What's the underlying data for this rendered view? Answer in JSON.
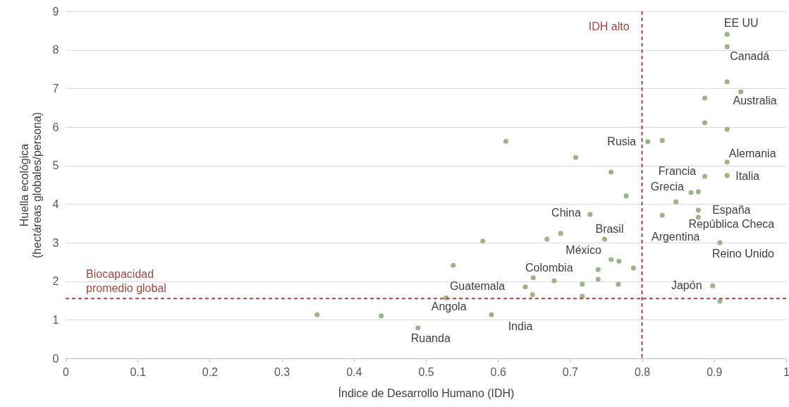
{
  "chart_data": {
    "type": "scatter",
    "xlabel": "Índice de Desarrollo Humano (IDH)",
    "ylabel": "Huella ecológica\n(hectáreas  globales/persona)",
    "x": [
      0.349,
      0.438,
      0.489,
      0.528,
      0.538,
      0.579,
      0.611,
      0.591,
      0.638,
      0.649,
      0.648,
      0.668,
      0.678,
      0.687,
      0.708,
      0.717,
      0.717,
      0.728,
      0.739,
      0.739,
      0.748,
      0.757,
      0.757,
      0.768,
      0.767,
      0.778,
      0.788,
      0.808,
      0.828,
      0.828,
      0.847,
      0.868,
      0.878,
      0.887,
      0.887,
      0.887,
      0.878,
      0.878,
      0.898,
      0.908,
      0.908,
      0.918,
      0.918,
      0.918,
      0.918,
      0.918,
      0.918,
      0.937
    ],
    "series": [
      {
        "color": "#9bb58a",
        "values": [
          1.13,
          1.1,
          0.79,
          1.57,
          2.41,
          3.04,
          5.63,
          1.13,
          1.85,
          2.09,
          1.65,
          3.09,
          2.01,
          3.24,
          5.21,
          1.92,
          1.61,
          3.73,
          2.3,
          2.05,
          3.09,
          4.83,
          2.56,
          2.52,
          1.92,
          4.21,
          2.34,
          5.62,
          5.65,
          3.71,
          4.06,
          4.3,
          4.32,
          6.75,
          6.11,
          4.72,
          3.84,
          3.66,
          1.88,
          3.0,
          1.48,
          8.4,
          8.08,
          7.17,
          5.94,
          5.09,
          4.74,
          6.91
        ]
      }
    ],
    "marker": "circle",
    "grid": "y",
    "xlim": [
      0,
      1
    ],
    "xticks": [
      0,
      0.1,
      0.2,
      0.3,
      0.4,
      0.5,
      0.6,
      0.7,
      0.8,
      0.9,
      1
    ],
    "ylim": [
      0,
      9
    ],
    "yticks": [
      0,
      1,
      2,
      3,
      4,
      5,
      6,
      7,
      8,
      9
    ],
    "ref_lines": [
      {
        "axis": "x",
        "value": 0.8,
        "label": "IDH alto",
        "color": "#a5473d",
        "line_style": "dashed"
      },
      {
        "axis": "y",
        "value": 1.55,
        "label": "Biocapacidad\npromedio global",
        "color": "#a5473d",
        "line_style": "dashed"
      }
    ],
    "annotations": [
      {
        "text": "EE UU",
        "x": 0.918,
        "y": 8.4
      },
      {
        "text": "Canadá",
        "x": 0.918,
        "y": 8.08
      },
      {
        "text": "Australia",
        "x": 0.937,
        "y": 6.91
      },
      {
        "text": "Alemania",
        "x": 0.918,
        "y": 5.09
      },
      {
        "text": "Italia",
        "x": 0.918,
        "y": 4.74
      },
      {
        "text": "Francia",
        "x": 0.887,
        "y": 4.72
      },
      {
        "text": "Grecia",
        "x": 0.878,
        "y": 4.32
      },
      {
        "text": "Rusia",
        "x": 0.808,
        "y": 5.62
      },
      {
        "text": "España",
        "x": 0.878,
        "y": 3.84
      },
      {
        "text": "República Checa",
        "x": 0.878,
        "y": 3.66
      },
      {
        "text": "Argentina",
        "x": 0.828,
        "y": 3.71
      },
      {
        "text": "Reino Unido",
        "x": 0.908,
        "y": 3.0
      },
      {
        "text": "Japón",
        "x": 0.898,
        "y": 1.88
      },
      {
        "text": "China",
        "x": 0.728,
        "y": 3.73
      },
      {
        "text": "Brasil",
        "x": 0.748,
        "y": 3.09
      },
      {
        "text": "México",
        "x": 0.757,
        "y": 2.56
      },
      {
        "text": "Colombia",
        "x": 0.717,
        "y": 1.92
      },
      {
        "text": "Guatemala",
        "x": 0.638,
        "y": 1.85
      },
      {
        "text": "Angola",
        "x": 0.528,
        "y": 1.57
      },
      {
        "text": "India",
        "x": 0.591,
        "y": 1.13
      },
      {
        "text": "Ruanda",
        "x": 0.489,
        "y": 0.79
      }
    ]
  }
}
